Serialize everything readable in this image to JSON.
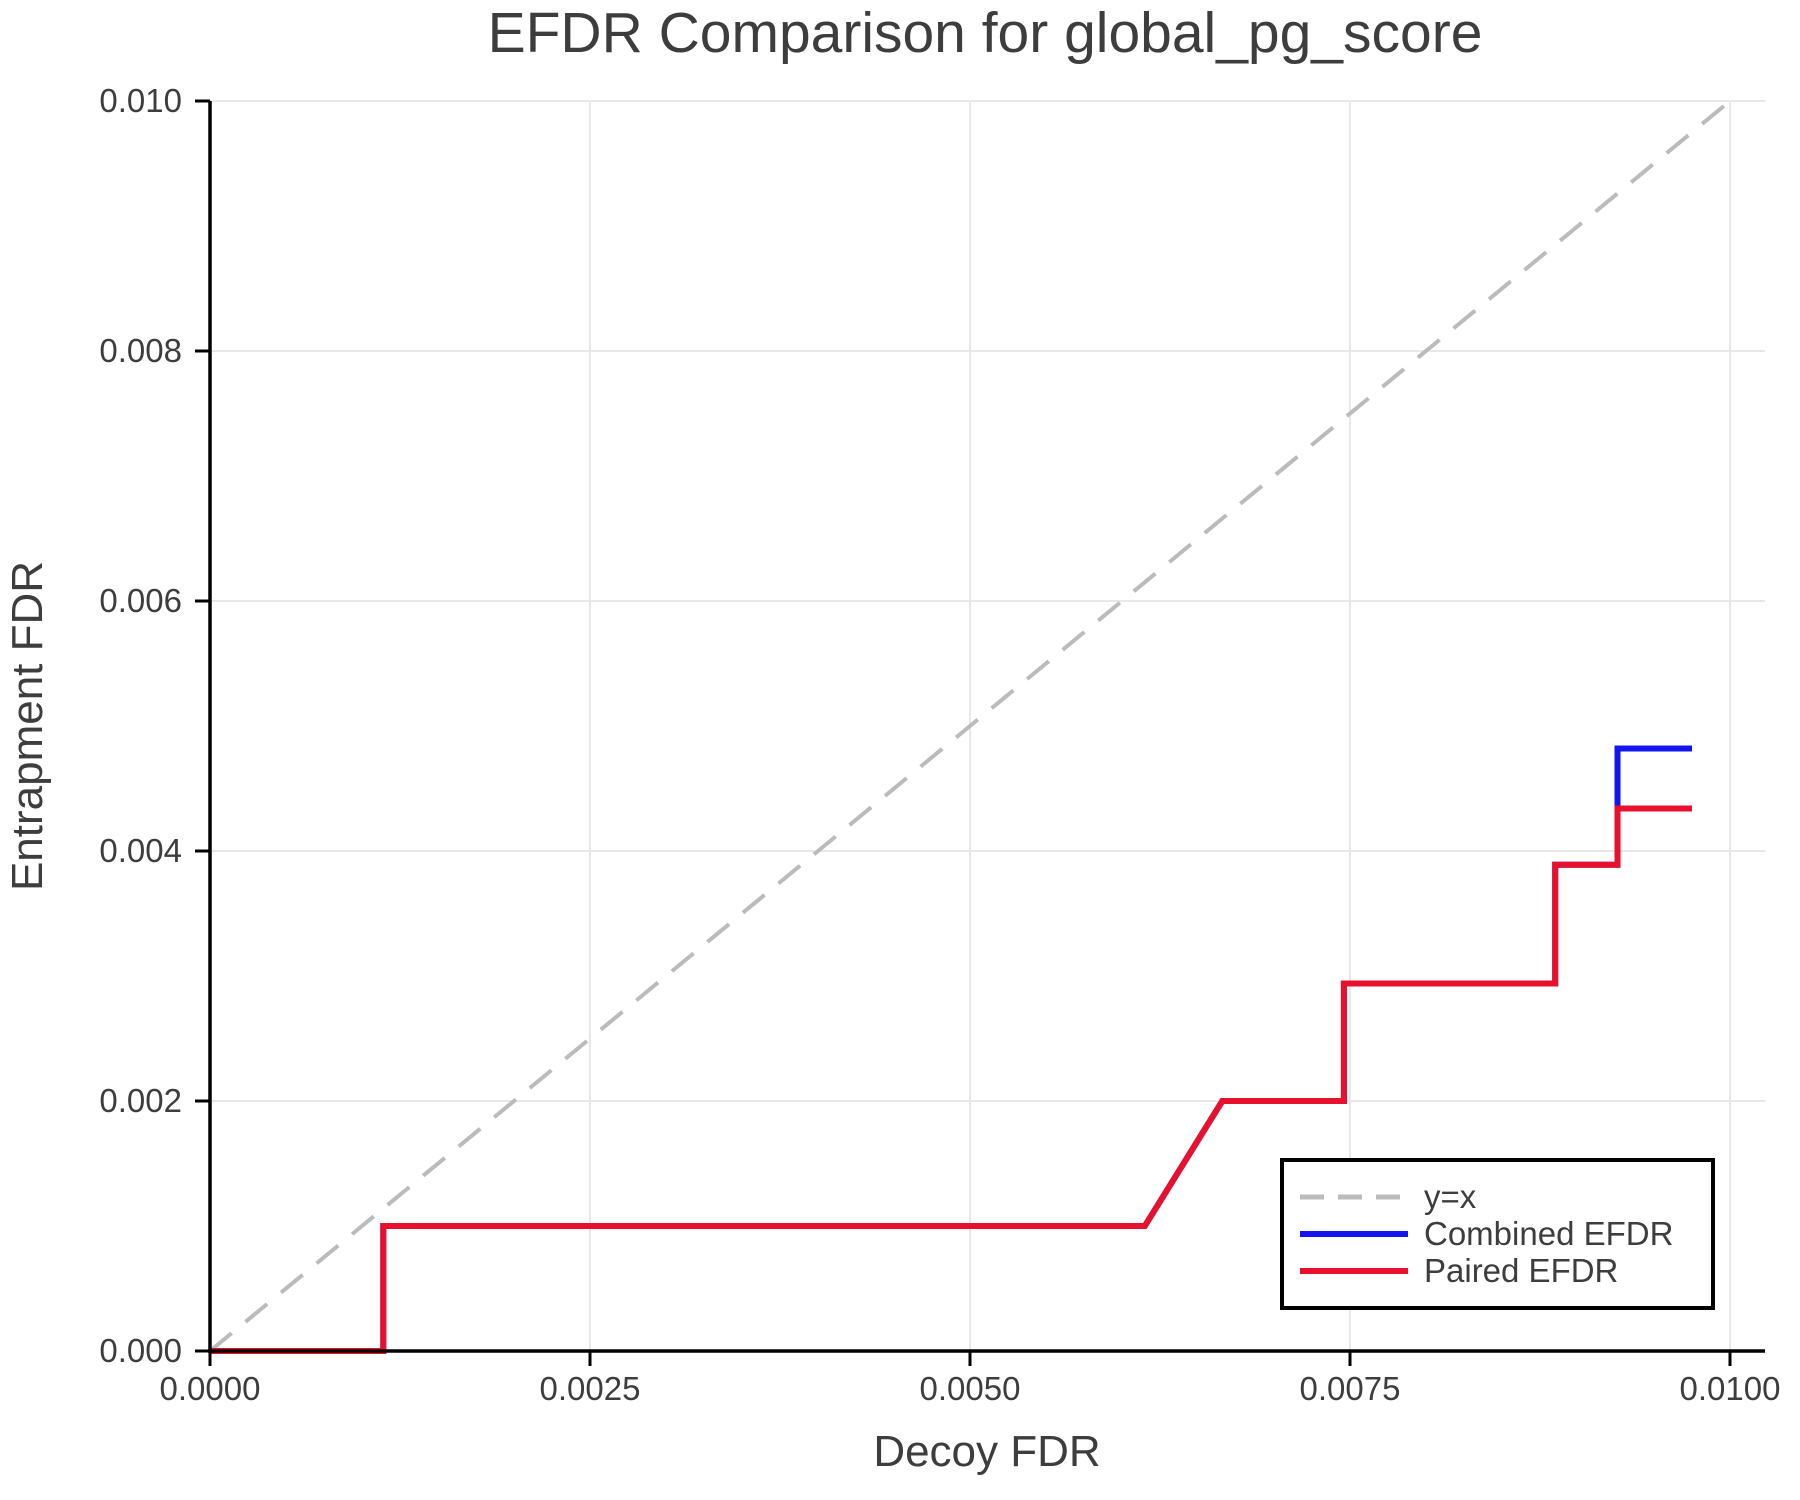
{
  "chart_data": {
    "type": "line",
    "title": "EFDR Comparison for global_pg_score",
    "xlabel": "Decoy FDR",
    "ylabel": "Entrapment FDR",
    "xlim": [
      0.0,
      0.01023
    ],
    "ylim": [
      0.0,
      0.01
    ],
    "grid": true,
    "legend_position": "lower right",
    "x_ticks": [
      {
        "value": 0.0,
        "label": "0.0000"
      },
      {
        "value": 0.0025,
        "label": "0.0025"
      },
      {
        "value": 0.005,
        "label": "0.0050"
      },
      {
        "value": 0.0075,
        "label": "0.0075"
      },
      {
        "value": 0.01,
        "label": "0.0100"
      }
    ],
    "y_ticks": [
      {
        "value": 0.0,
        "label": "0.000"
      },
      {
        "value": 0.002,
        "label": "0.002"
      },
      {
        "value": 0.004,
        "label": "0.004"
      },
      {
        "value": 0.006,
        "label": "0.006"
      },
      {
        "value": 0.008,
        "label": "0.008"
      },
      {
        "value": 0.01,
        "label": "0.010"
      }
    ],
    "series": [
      {
        "name": "y=x",
        "color": "#bbbbbb",
        "dashed": true,
        "width": 4,
        "points": [
          [
            0.0,
            0.0
          ],
          [
            0.01,
            0.01
          ]
        ]
      },
      {
        "name": "Combined EFDR",
        "color": "#1414f0",
        "dashed": false,
        "width": 6,
        "points": [
          [
            0.0,
            0.0
          ],
          [
            0.00114,
            0.0
          ],
          [
            0.00114,
            0.001
          ],
          [
            0.00615,
            0.001
          ],
          [
            0.00666,
            0.002
          ],
          [
            0.00746,
            0.002
          ],
          [
            0.00746,
            0.00294
          ],
          [
            0.00885,
            0.00294
          ],
          [
            0.00885,
            0.00389
          ],
          [
            0.00926,
            0.00389
          ],
          [
            0.00926,
            0.00482
          ],
          [
            0.00975,
            0.00482
          ]
        ]
      },
      {
        "name": "Paired EFDR",
        "color": "#e8112d",
        "dashed": false,
        "width": 6,
        "points": [
          [
            0.0,
            0.0
          ],
          [
            0.00114,
            0.0
          ],
          [
            0.00114,
            0.001
          ],
          [
            0.00615,
            0.001
          ],
          [
            0.00666,
            0.002
          ],
          [
            0.00746,
            0.002
          ],
          [
            0.00746,
            0.00294
          ],
          [
            0.00885,
            0.00294
          ],
          [
            0.00885,
            0.00389
          ],
          [
            0.00926,
            0.00389
          ],
          [
            0.00926,
            0.00434
          ],
          [
            0.00975,
            0.00434
          ]
        ]
      }
    ],
    "colors": {
      "grid": "#e8e8e8",
      "spine": "#000000",
      "text": "#3d3d3d",
      "legend_border": "#000000",
      "legend_background": "#ffffff"
    }
  }
}
